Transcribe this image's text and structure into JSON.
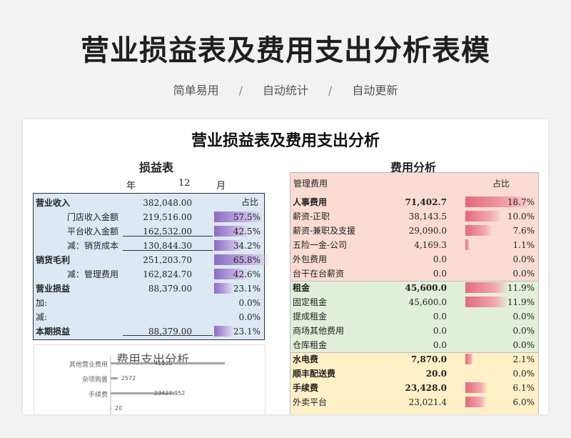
{
  "header": {
    "title": "营业损益表及费用支出分析表模"
  },
  "tags": [
    "简单易用",
    "自动统计",
    "自动更新"
  ],
  "tag_sep": "/",
  "sheet": {
    "title": "营业损益表及费用支出分析",
    "income": {
      "title": "损益表",
      "year_label": "年",
      "month_value": "12",
      "month_label": "月",
      "ratio_header": "占比",
      "rows": [
        {
          "label": "营业收入",
          "value": "382,048.00",
          "pct": "",
          "bar": 0
        },
        {
          "label": "门店收入金额",
          "value": "219,516.00",
          "pct": "57.5%",
          "bar": 0.575
        },
        {
          "label": "平台收入金额",
          "value": "162,532.00",
          "pct": "42.5%",
          "bar": 0.425
        },
        {
          "label": "减：销货成本",
          "value": "130,844.30",
          "pct": "34.2%",
          "bar": 0.342
        },
        {
          "label": "销货毛利",
          "value": "251,203.70",
          "pct": "65.8%",
          "bar": 0.658
        },
        {
          "label": "减：管理费用",
          "value": "162,824.70",
          "pct": "42.6%",
          "bar": 0.426
        },
        {
          "label": "营业损益",
          "value": "88,379.00",
          "pct": "23.1%",
          "bar": 0.231
        },
        {
          "label": "加:",
          "value": "",
          "pct": "0.0%",
          "bar": 0
        },
        {
          "label": "减:",
          "value": "",
          "pct": "0.0%",
          "bar": 0
        },
        {
          "label": "本期损益",
          "value": "88,379.00",
          "pct": "23.1%",
          "bar": 0.231
        }
      ]
    },
    "mini_chart": {
      "title": "费用支出分析",
      "categories": [
        "其他营业费用",
        "杂项购置",
        "手续费",
        ""
      ],
      "value_labels": [
        "41932",
        "2572",
        "23427.952",
        "20"
      ],
      "values": [
        41932,
        2572,
        23427.952,
        20
      ]
    },
    "expense": {
      "title": "费用分析",
      "head_label": "管理费用",
      "ratio_header": "占比",
      "rows": [
        {
          "label": "人事费用",
          "value": "71,402.7",
          "pct": "18.7%",
          "bar": 0.187
        },
        {
          "label": "薪资-正职",
          "value": "38,143.5",
          "pct": "10.0%",
          "bar": 0.1
        },
        {
          "label": "薪资-兼职及支援",
          "value": "29,090.0",
          "pct": "7.6%",
          "bar": 0.076
        },
        {
          "label": "五险一金-公司",
          "value": "4,169.3",
          "pct": "1.1%",
          "bar": 0.011
        },
        {
          "label": "外包费用",
          "value": "0.0",
          "pct": "0.0%",
          "bar": 0
        },
        {
          "label": "台干在台薪资",
          "value": "0.0",
          "pct": "0.0%",
          "bar": 0
        },
        {
          "label": "租金",
          "value": "45,600.0",
          "pct": "11.9%",
          "bar": 0.119
        },
        {
          "label": "固定租金",
          "value": "45,600.0",
          "pct": "11.9%",
          "bar": 0.119
        },
        {
          "label": "提成租金",
          "value": "0.0",
          "pct": "0.0%",
          "bar": 0
        },
        {
          "label": "商场其他费用",
          "value": "0.0",
          "pct": "0.0%",
          "bar": 0
        },
        {
          "label": "仓库租金",
          "value": "0.0",
          "pct": "0.0%",
          "bar": 0
        },
        {
          "label": "水电费",
          "value": "7,870.0",
          "pct": "2.1%",
          "bar": 0.021
        },
        {
          "label": "顺丰配送费",
          "value": "20.0",
          "pct": "0.0%",
          "bar": 0
        },
        {
          "label": "手续费",
          "value": "23,428.0",
          "pct": "6.1%",
          "bar": 0.061
        },
        {
          "label": "外卖平台",
          "value": "23,021.4",
          "pct": "6.0%",
          "bar": 0.06
        }
      ]
    },
    "colors": {
      "blue_bg": "#dce8f4",
      "pink_bg": "#fadcd3",
      "green_bg": "#e2efd9",
      "yellow_bg": "#fff0c8",
      "purple_bar": "#8b6cc4",
      "red_bar": "#e46a78"
    }
  }
}
